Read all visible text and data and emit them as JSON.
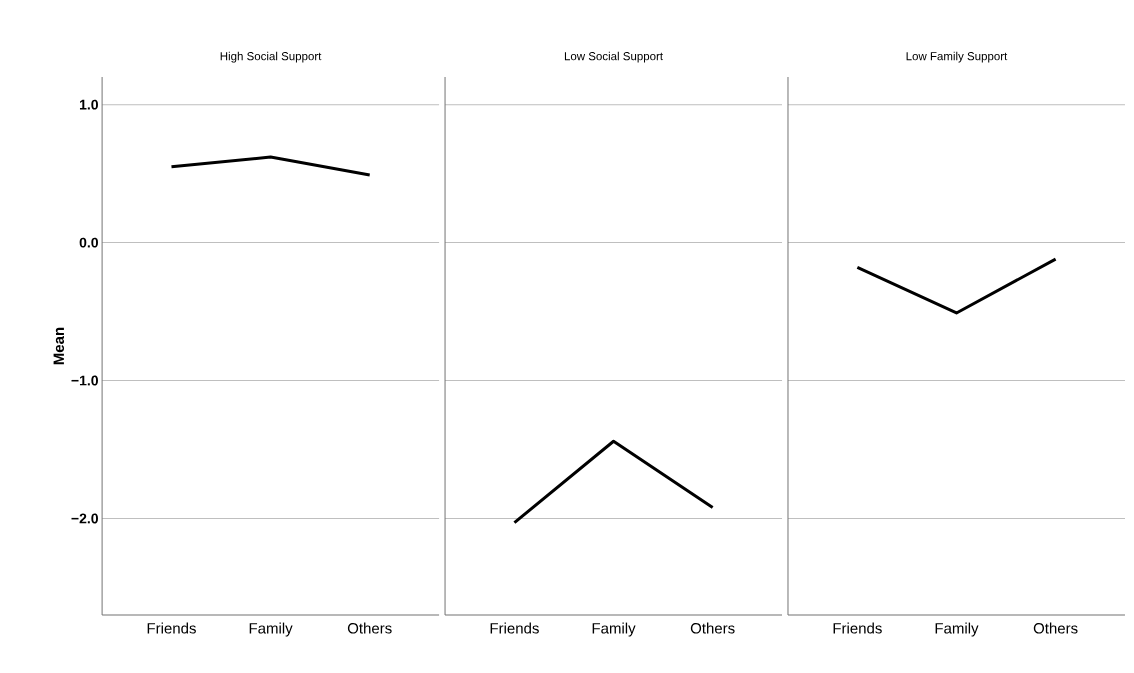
{
  "chart_data": [
    {
      "type": "line",
      "title": "High Social Support",
      "ylabel": "Mean",
      "categories": [
        "Friends",
        "Family",
        "Others"
      ],
      "series": [
        {
          "color": "#000000",
          "values": [
            0.55,
            0.62,
            0.49
          ]
        }
      ],
      "ylim": [
        -2.7,
        1.2
      ],
      "yticks": [
        {
          "value": 1.0,
          "label": "1.0"
        },
        {
          "value": 0.0,
          "label": "0.0"
        },
        {
          "value": -1.0,
          "label": "−1.0"
        },
        {
          "value": -2.0,
          "label": "−2.0"
        }
      ],
      "grid": "y",
      "marker": "none",
      "line_style": "solid"
    },
    {
      "type": "line",
      "title": "Low Social Support",
      "categories": [
        "Friends",
        "Family",
        "Others"
      ],
      "series": [
        {
          "color": "#000000",
          "values": [
            -2.03,
            -1.44,
            -1.92
          ]
        }
      ],
      "ylim": [
        -2.7,
        1.2
      ],
      "yticks": [
        {
          "value": 1.0,
          "label": null
        },
        {
          "value": 0.0,
          "label": null
        },
        {
          "value": -1.0,
          "label": null
        },
        {
          "value": -2.0,
          "label": null
        }
      ],
      "grid": "y",
      "tick_labels": "x",
      "marker": "none",
      "line_style": "solid"
    },
    {
      "type": "line",
      "title": "Low Family Support",
      "categories": [
        "Friends",
        "Family",
        "Others"
      ],
      "series": [
        {
          "color": "#000000",
          "values": [
            -0.18,
            -0.51,
            -0.12
          ]
        }
      ],
      "ylim": [
        -2.7,
        1.2
      ],
      "yticks": [
        {
          "value": 1.0,
          "label": null
        },
        {
          "value": 0.0,
          "label": null
        },
        {
          "value": -1.0,
          "label": null
        },
        {
          "value": -2.0,
          "label": null
        }
      ],
      "grid": "y",
      "tick_labels": "x",
      "marker": "none",
      "line_style": "solid"
    }
  ]
}
